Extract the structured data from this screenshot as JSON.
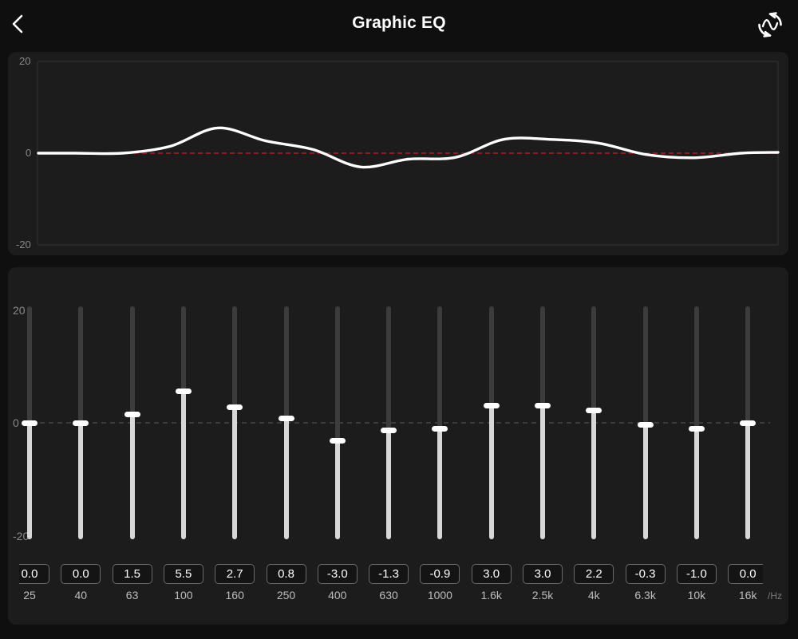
{
  "header": {
    "title": "Graphic EQ",
    "back_icon": "chevron-left-icon",
    "reset_icon": "reset-curve-icon"
  },
  "curve_panel": {
    "y_max_label": "20",
    "y_zero_label": "0",
    "y_min_label": "-20",
    "ylim": [
      -20,
      20
    ],
    "curve_color": "#ffffff",
    "zero_line_color": "#c0151d"
  },
  "sliders_panel": {
    "y_max_label": "20",
    "y_zero_label": "0",
    "y_min_label": "-20",
    "unit_label": "/Hz",
    "range": [
      -20,
      20
    ],
    "track_color": "#3c3c3c",
    "fill_color": "#d7d7d7",
    "bands": [
      {
        "freq": "25",
        "value": 0.0,
        "value_label": "0.0"
      },
      {
        "freq": "40",
        "value": 0.0,
        "value_label": "0.0"
      },
      {
        "freq": "63",
        "value": 1.5,
        "value_label": "1.5"
      },
      {
        "freq": "100",
        "value": 5.5,
        "value_label": "5.5"
      },
      {
        "freq": "160",
        "value": 2.7,
        "value_label": "2.7"
      },
      {
        "freq": "250",
        "value": 0.8,
        "value_label": "0.8"
      },
      {
        "freq": "400",
        "value": -3.0,
        "value_label": "-3.0"
      },
      {
        "freq": "630",
        "value": -1.3,
        "value_label": "-1.3"
      },
      {
        "freq": "1000",
        "value": -0.9,
        "value_label": "-0.9"
      },
      {
        "freq": "1.6k",
        "value": 3.0,
        "value_label": "3.0"
      },
      {
        "freq": "2.5k",
        "value": 3.0,
        "value_label": "3.0"
      },
      {
        "freq": "4k",
        "value": 2.2,
        "value_label": "2.2"
      },
      {
        "freq": "6.3k",
        "value": -0.3,
        "value_label": "-0.3"
      },
      {
        "freq": "10k",
        "value": -1.0,
        "value_label": "-1.0"
      },
      {
        "freq": "16k",
        "value": 0.0,
        "value_label": "0.0"
      }
    ]
  }
}
